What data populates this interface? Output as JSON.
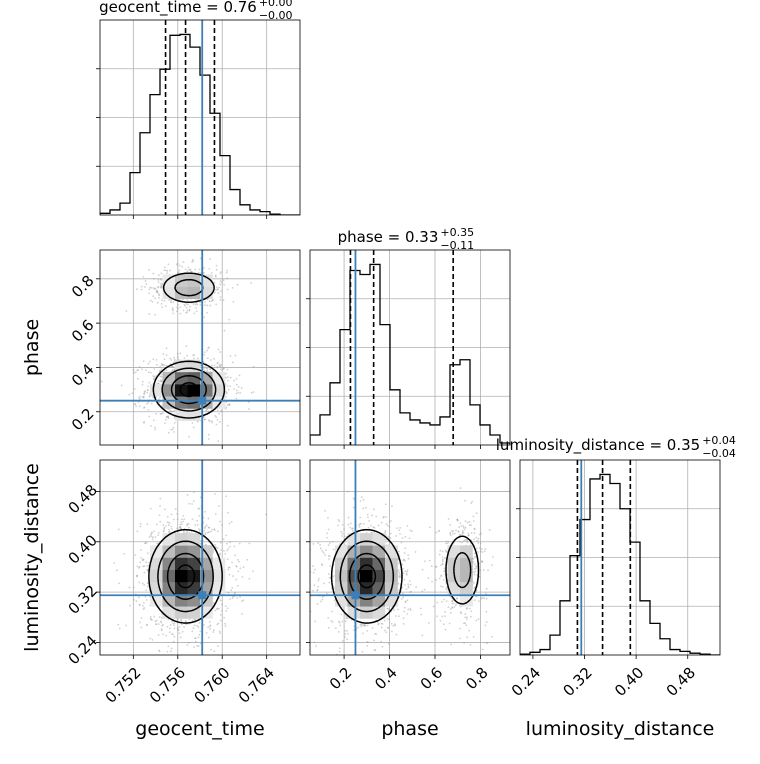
{
  "chart_data": {
    "type": "corner",
    "parameters": [
      "geocent_time",
      "phase",
      "luminosity_distance"
    ],
    "titles": [
      {
        "param": "geocent_time",
        "lead": "geocent_time = 0.76",
        "plus": "+0.00",
        "minus": "−0.00"
      },
      {
        "param": "phase",
        "lead": "phase = 0.33",
        "plus": "+0.35",
        "minus": "−0.11"
      },
      {
        "param": "luminosity_distance",
        "lead": "luminosity_distance = 0.35",
        "plus": "+0.04",
        "minus": "−0.04"
      }
    ],
    "axes": {
      "geocent_time": {
        "range": [
          0.749,
          0.767
        ],
        "ticks": [
          0.752,
          0.756,
          0.76,
          0.764
        ],
        "tick_labels": [
          "0.752",
          "0.756",
          "0.760",
          "0.764"
        ],
        "label": "geocent_time"
      },
      "phase": {
        "range": [
          0.05,
          0.93
        ],
        "ticks": [
          0.2,
          0.4,
          0.6,
          0.8
        ],
        "tick_labels": [
          "0.2",
          "0.4",
          "0.6",
          "0.8"
        ],
        "label": "phase"
      },
      "luminosity_distance": {
        "range": [
          0.22,
          0.53
        ],
        "ticks": [
          0.24,
          0.32,
          0.4,
          0.48
        ],
        "tick_labels": [
          "0.24",
          "0.32",
          "0.40",
          "0.48"
        ],
        "label": "luminosity_distance"
      }
    },
    "injection": {
      "geocent_time": 0.7582,
      "phase": 0.25,
      "luminosity_distance": 0.315
    },
    "quantiles": {
      "geocent_time": [
        0.7549,
        0.7567,
        0.7593
      ],
      "phase": [
        0.228,
        0.33,
        0.68
      ],
      "luminosity_distance": [
        0.309,
        0.348,
        0.391
      ]
    },
    "histograms": {
      "geocent_time": {
        "edges": [
          0.749,
          0.7499,
          0.7508,
          0.7517,
          0.7526,
          0.7535,
          0.7544,
          0.7553,
          0.7562,
          0.7571,
          0.758,
          0.7589,
          0.7598,
          0.7607,
          0.7616,
          0.7625,
          0.7634,
          0.7643,
          0.7652,
          0.7661,
          0.767
        ],
        "counts": [
          2,
          6,
          14,
          50,
          97,
          142,
          172,
          212,
          213,
          198,
          165,
          120,
          70,
          30,
          12,
          6,
          4,
          1,
          0,
          0
        ]
      },
      "phase": {
        "edges": [
          0.05,
          0.094,
          0.138,
          0.182,
          0.226,
          0.27,
          0.314,
          0.358,
          0.402,
          0.446,
          0.49,
          0.534,
          0.578,
          0.622,
          0.666,
          0.71,
          0.754,
          0.798,
          0.842,
          0.886,
          0.93
        ],
        "counts": [
          10,
          30,
          62,
          115,
          174,
          170,
          180,
          120,
          55,
          32,
          25,
          22,
          20,
          28,
          80,
          85,
          40,
          20,
          10,
          2
        ]
      },
      "luminosity_distance": {
        "edges": [
          0.22,
          0.2355,
          0.251,
          0.2665,
          0.282,
          0.2975,
          0.313,
          0.3285,
          0.344,
          0.3595,
          0.375,
          0.3905,
          0.406,
          0.4215,
          0.437,
          0.4525,
          0.468,
          0.4835,
          0.499,
          0.5145,
          0.53
        ],
        "counts": [
          1,
          3,
          6,
          22,
          60,
          110,
          150,
          195,
          200,
          190,
          162,
          125,
          60,
          35,
          18,
          6,
          4,
          2,
          1,
          0
        ]
      }
    },
    "joint": [
      {
        "x": "geocent_time",
        "y": "phase",
        "modes": [
          {
            "cx": 0.757,
            "cy": 0.3,
            "sx": 0.00155,
            "sy": 0.062,
            "w": 1.0
          },
          {
            "cx": 0.757,
            "cy": 0.76,
            "sx": 0.0014,
            "sy": 0.04,
            "w": 0.45
          }
        ]
      },
      {
        "x": "geocent_time",
        "y": "luminosity_distance",
        "modes": [
          {
            "cx": 0.7567,
            "cy": 0.345,
            "sx": 0.0016,
            "sy": 0.036,
            "w": 1.0
          }
        ]
      },
      {
        "x": "phase",
        "y": "luminosity_distance",
        "modes": [
          {
            "cx": 0.3,
            "cy": 0.345,
            "sx": 0.075,
            "sy": 0.036,
            "w": 1.0
          },
          {
            "cx": 0.72,
            "cy": 0.355,
            "sx": 0.045,
            "sy": 0.034,
            "w": 0.42
          }
        ]
      }
    ],
    "colors": {
      "truth": "#3d7fb6",
      "line": "#000000",
      "grid": "#b0b0b0"
    },
    "grid": true
  }
}
